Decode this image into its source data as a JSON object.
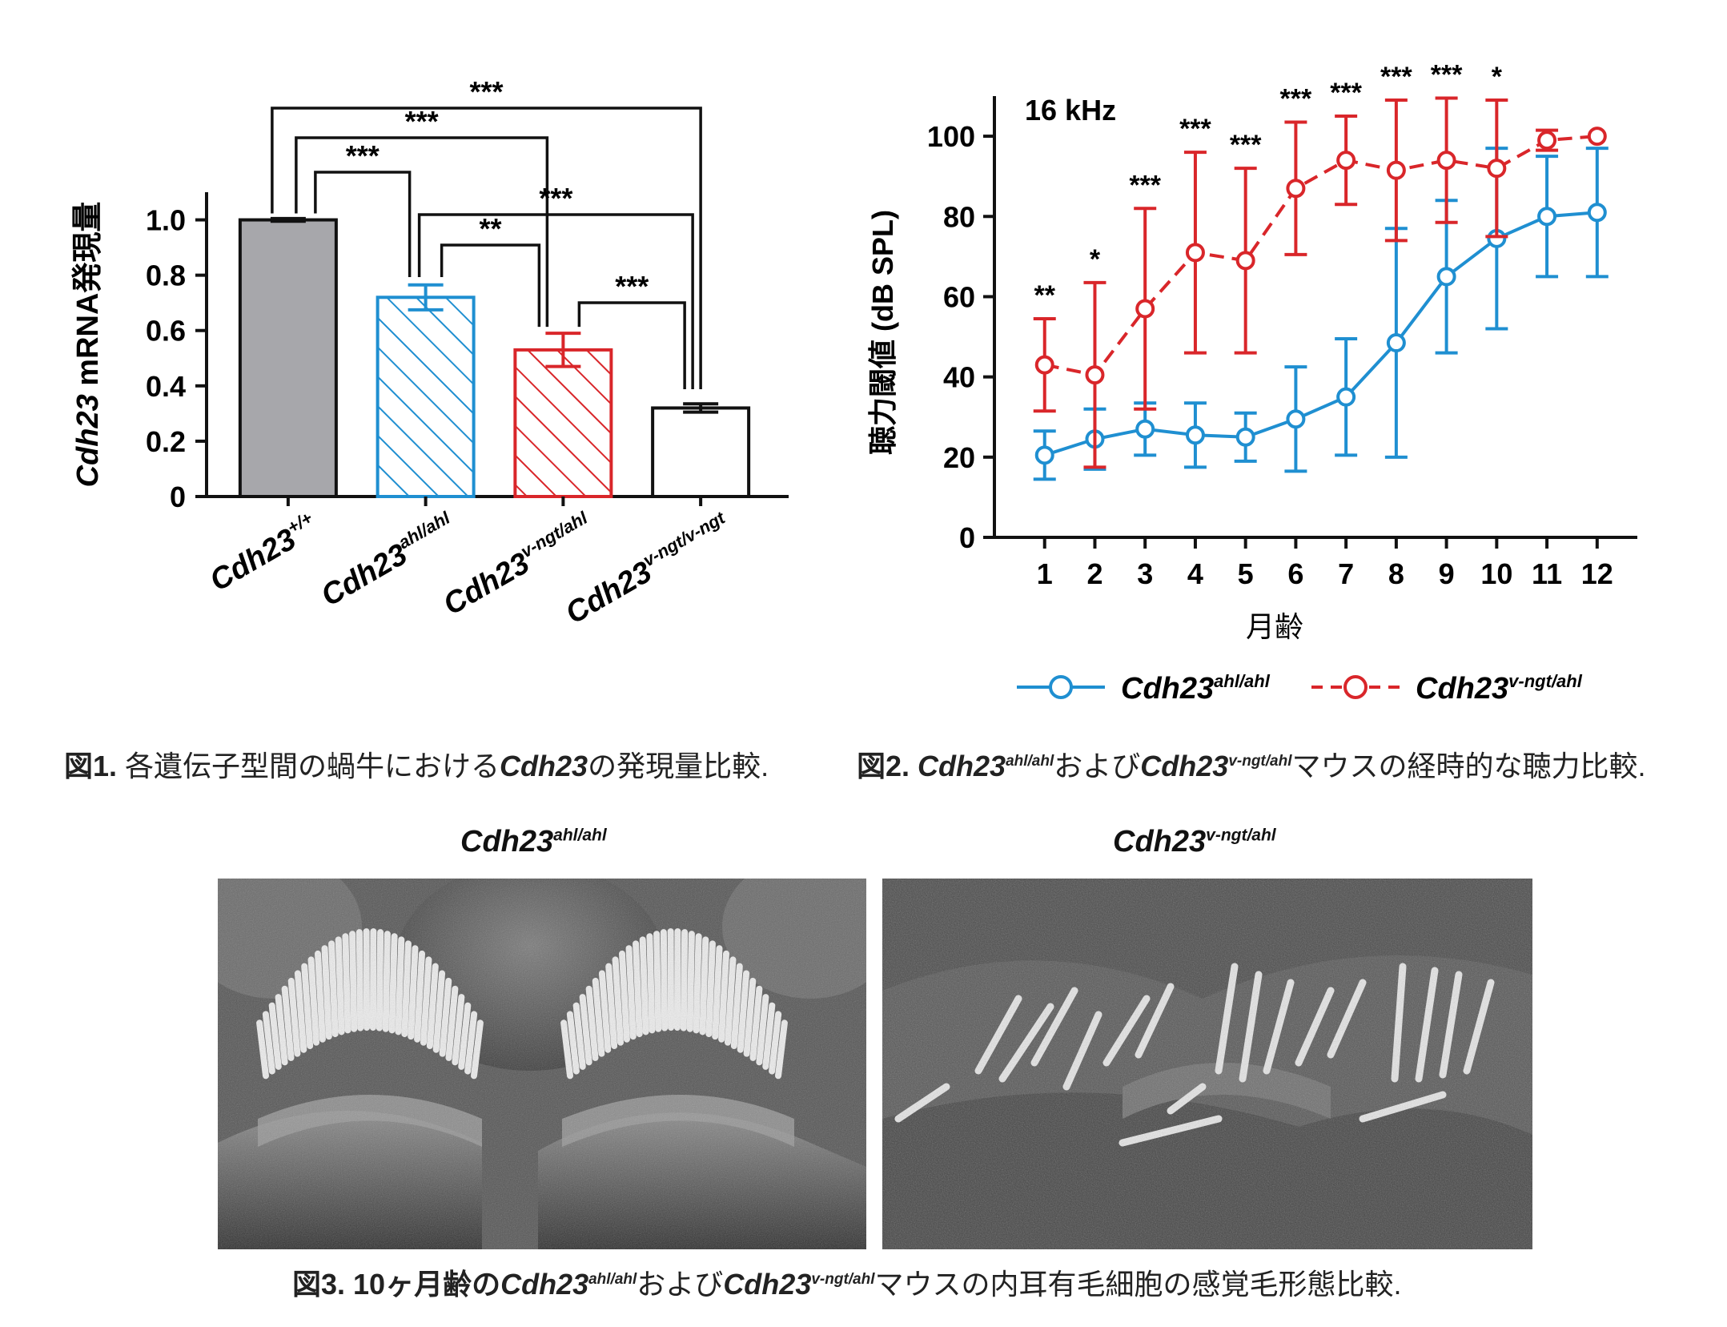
{
  "figure1": {
    "chart_data": {
      "type": "bar",
      "ylabel_gene": "Cdh23",
      "ylabel_rest": " mRNA発現量",
      "ylim": [
        0,
        1.1
      ],
      "yticks": [
        "0",
        "0.2",
        "0.4",
        "0.6",
        "0.8",
        "1.0"
      ],
      "ytick_values": [
        0,
        0.2,
        0.4,
        0.6,
        0.8,
        1.0
      ],
      "bars": [
        {
          "gene": "Cdh23",
          "genotype": "+/+",
          "value": 1.0,
          "err": 0.005,
          "fill": "#a7a7ab",
          "edge": "#111111",
          "hatch": false
        },
        {
          "gene": "Cdh23",
          "genotype": "ahl/ahl",
          "value": 0.72,
          "err": 0.045,
          "fill": "#ffffff",
          "edge": "#1f8fd1",
          "hatch": true
        },
        {
          "gene": "Cdh23",
          "genotype": "v-ngt/ahl",
          "value": 0.53,
          "err": 0.06,
          "fill": "#ffffff",
          "edge": "#d9262a",
          "hatch": true
        },
        {
          "gene": "Cdh23",
          "genotype": "v-ngt/v-ngt",
          "value": 0.32,
          "err": 0.015,
          "fill": "#ffffff",
          "edge": "#111111",
          "hatch": false
        }
      ],
      "significance": [
        {
          "from": 0,
          "to": 3,
          "label": "***"
        },
        {
          "from": 0,
          "to": 2,
          "label": "***"
        },
        {
          "from": 0,
          "to": 1,
          "label": "***"
        },
        {
          "from": 1,
          "to": 3,
          "label": "***"
        },
        {
          "from": 1,
          "to": 2,
          "label": "**"
        },
        {
          "from": 2,
          "to": 3,
          "label": "***"
        }
      ]
    }
  },
  "figure2": {
    "chart_data": {
      "type": "line",
      "annotation": "16 kHz",
      "xlabel": "月齢",
      "ylabel": "聴力閾値 (dB SPL)",
      "x": [
        1,
        2,
        3,
        4,
        5,
        6,
        7,
        8,
        9,
        10,
        11,
        12
      ],
      "xlim": [
        0,
        12.8
      ],
      "ylim": [
        0,
        110
      ],
      "yticks": [
        0,
        20,
        40,
        60,
        80,
        100
      ],
      "series": [
        {
          "gene": "Cdh23",
          "genotype": "ahl/ahl",
          "color": "#1f8fd1",
          "dash": false,
          "values": [
            20.5,
            24.5,
            27,
            25.5,
            25,
            29.5,
            35,
            48.5,
            65,
            74.5,
            80,
            81
          ],
          "errors": [
            6,
            7.5,
            6.5,
            8,
            6,
            13,
            14.5,
            28.5,
            19,
            22.5,
            15,
            16
          ]
        },
        {
          "gene": "Cdh23",
          "genotype": "v-ngt/ahl",
          "color": "#d9262a",
          "dash": true,
          "values": [
            43,
            40.5,
            57,
            71,
            69,
            87,
            94,
            91.5,
            94,
            92,
            99,
            100
          ],
          "errors": [
            11.5,
            23,
            25,
            25,
            23,
            16.5,
            11,
            17.5,
            15.5,
            17,
            2.5,
            0
          ]
        }
      ],
      "significance": [
        {
          "x": 1,
          "label": "**"
        },
        {
          "x": 2,
          "label": "*"
        },
        {
          "x": 3,
          "label": "***"
        },
        {
          "x": 4,
          "label": "***"
        },
        {
          "x": 5,
          "label": "***"
        },
        {
          "x": 6,
          "label": "***"
        },
        {
          "x": 7,
          "label": "***"
        },
        {
          "x": 8,
          "label": "***"
        },
        {
          "x": 9,
          "label": "***"
        },
        {
          "x": 10,
          "label": "*"
        }
      ]
    }
  },
  "captions": {
    "fig1": {
      "label": "図1.",
      "text1": " 各遺伝子型間の蝸牛における",
      "gene": "Cdh23",
      "text2": "の発現量比較."
    },
    "fig2": {
      "label": "図2.",
      "gene": "Cdh23",
      "sup1": "ahl/ahl",
      "mid": "および",
      "sup2": "v-ngt/ahl",
      "text": "マウスの経時的な聴力比較."
    },
    "fig3": {
      "label": "図3.",
      "pre": " 10ヶ月齢の",
      "gene": "Cdh23",
      "sup1": "ahl/ahl",
      "mid": "および",
      "sup2": "v-ngt/ahl",
      "text": "マウスの内耳有毛細胞の感覚毛形態比較."
    }
  },
  "figure3": {
    "left_title": {
      "gene": "Cdh23",
      "sup": "ahl/ahl"
    },
    "right_title": {
      "gene": "Cdh23",
      "sup": "v-ngt/ahl"
    }
  }
}
